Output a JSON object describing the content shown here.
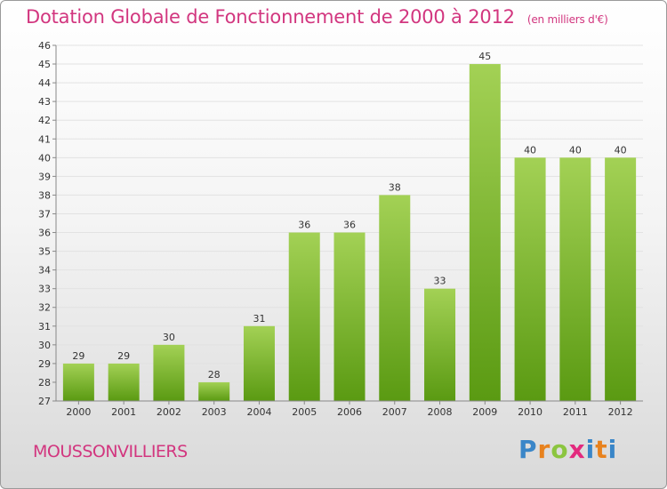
{
  "header": {
    "title": "Dotation Globale de Fonctionnement de 2000 à 2012",
    "unit": "(en milliers d'€)"
  },
  "footer": {
    "commune": "MOUSSONVILLIERS",
    "logo": {
      "p": "P",
      "r": "r",
      "o": "o",
      "x": "x",
      "i": "i",
      "t": "t",
      "i2": "i"
    }
  },
  "chart_data": {
    "type": "bar",
    "categories": [
      "2000",
      "2001",
      "2002",
      "2003",
      "2004",
      "2005",
      "2006",
      "2007",
      "2008",
      "2009",
      "2010",
      "2011",
      "2012"
    ],
    "values": [
      29,
      29,
      30,
      28,
      31,
      36,
      36,
      38,
      33,
      45,
      40,
      40,
      40
    ],
    "ylim": [
      27,
      46
    ],
    "ytick_step": 1,
    "grid": true,
    "colors": {
      "bar_top": "#a3d155",
      "bar_bottom": "#5a9a12",
      "grid": "#e2e2e2",
      "axis": "#888888"
    }
  }
}
